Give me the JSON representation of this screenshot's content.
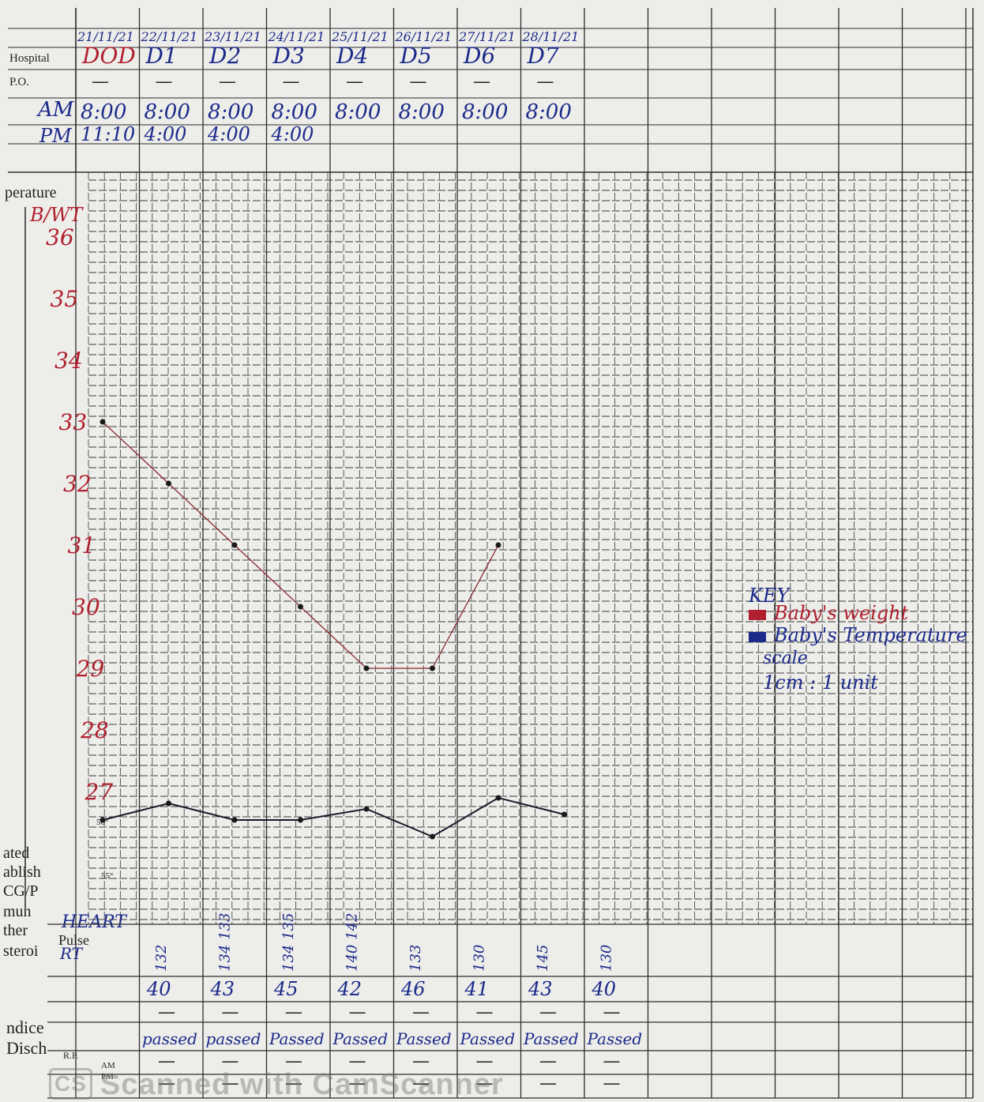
{
  "header": {
    "row_labels": [
      "Hospital",
      "P.O.",
      "AM",
      "PM"
    ],
    "dates": [
      "21/11/21",
      "22/11/21",
      "23/11/21",
      "24/11/21",
      "25/11/21",
      "26/11/21",
      "27/11/21",
      "28/11/21"
    ],
    "days": [
      "DOD",
      "D1",
      "D2",
      "D3",
      "D4",
      "D5",
      "D6",
      "D7"
    ],
    "po": [
      "—",
      "—",
      "—",
      "—",
      "—",
      "—",
      "—",
      "—"
    ],
    "am_times": [
      "8:00",
      "8:00",
      "8:00",
      "8:00",
      "8:00",
      "8:00",
      "8:00",
      "8:00"
    ],
    "pm_times": [
      "11:10",
      "4:00",
      "4:00",
      "4:00"
    ]
  },
  "left_margin": {
    "printed_fragments": [
      "perature",
      "ated",
      "ablish",
      "CG/P",
      "mun",
      "ther",
      "steroi",
      "ndice",
      "Disch"
    ],
    "weight_title": "B/WT",
    "heart_label": "HEART",
    "pulse_label": "Pulse",
    "rate_label": "RT",
    "temp_marks_bottom": [
      "56°",
      "55°"
    ]
  },
  "key": {
    "title": "KEY",
    "entries": [
      {
        "label": "Baby's weight",
        "color": "#b0202e"
      },
      {
        "label": "Baby's Temperature",
        "color": "#1c2a8a"
      }
    ],
    "scale_title": "scale",
    "scale_value": "1cm : 1 unit"
  },
  "bottom_rows": {
    "heart_rate": [
      "132",
      "134 133",
      "134 135",
      "140 142",
      "133",
      "130",
      "145",
      "130"
    ],
    "resp_rate": [
      "40",
      "43",
      "45",
      "42",
      "46",
      "41",
      "43",
      "40"
    ],
    "dashes": [
      "—",
      "—",
      "—",
      "—",
      "—",
      "—",
      "—",
      "—"
    ],
    "status": [
      "passed",
      "passed",
      "Passed",
      "Passed",
      "Passed",
      "Passed",
      "Passed",
      "Passed"
    ],
    "row_marks": [
      "AM",
      "PM",
      "R.P."
    ]
  },
  "chart_data": {
    "type": "line",
    "ylabel": "B/WT",
    "y_ticks": [
      "36",
      "35",
      "34",
      "33",
      "32",
      "31",
      "30",
      "29",
      "28",
      "27"
    ],
    "ylim": [
      26,
      36
    ],
    "grid": true,
    "legend_position": "right",
    "series": [
      {
        "name": "Baby's weight",
        "color": "#b0202e",
        "points": [
          [
            0,
            33
          ],
          [
            0.5,
            32
          ],
          [
            1,
            31
          ],
          [
            1.5,
            30
          ],
          [
            2,
            29
          ],
          [
            2.5,
            29
          ],
          [
            3,
            31
          ]
        ]
      },
      {
        "name": "Baby's Temperature",
        "color": "#1c2a8a",
        "points": [
          [
            0,
            26
          ],
          [
            0.5,
            26.3
          ],
          [
            1,
            26
          ],
          [
            1.5,
            26
          ],
          [
            2,
            26.2
          ],
          [
            2.5,
            25.7
          ],
          [
            3,
            26.4
          ],
          [
            3.5,
            26.1
          ]
        ]
      }
    ]
  },
  "watermark": {
    "badge": "CS",
    "text": "Scanned with CamScanner"
  }
}
